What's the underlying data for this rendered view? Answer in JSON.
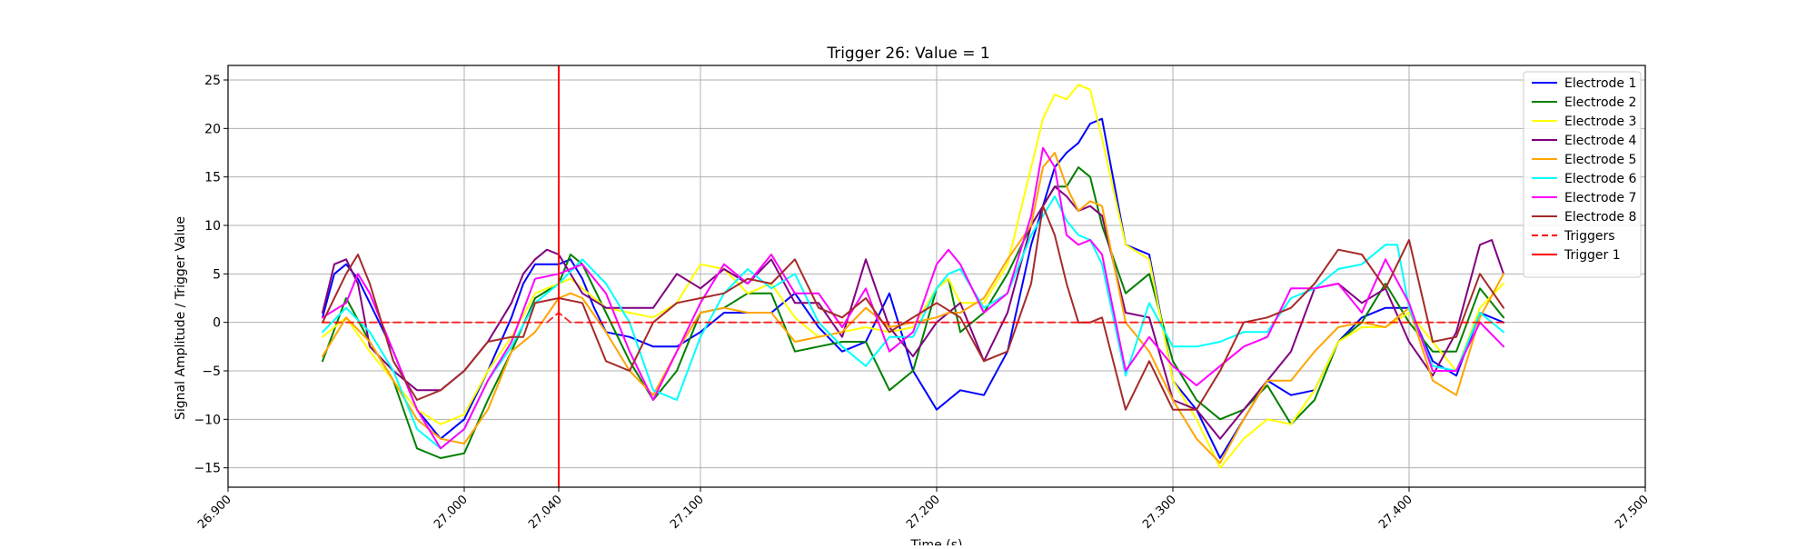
{
  "chart_data": {
    "type": "line",
    "title": "Trigger 26: Value = 1",
    "xlabel": "Time (s)",
    "ylabel": "Signal Amplitude / Trigger Value",
    "xlim": [
      26.9,
      27.5
    ],
    "ylim": [
      -17,
      26.5
    ],
    "x_ticks": [
      26.9,
      27.0,
      27.04,
      27.1,
      27.2,
      27.3,
      27.4,
      27.5
    ],
    "x_tick_labels": [
      "26.900",
      "27.000",
      "27.040",
      "27.100",
      "27.200",
      "27.300",
      "27.400",
      "27.500"
    ],
    "y_ticks": [
      -15,
      -10,
      -5,
      0,
      5,
      10,
      15,
      20,
      25
    ],
    "y_tick_labels": [
      "−15",
      "−10",
      "−5",
      "0",
      "5",
      "10",
      "15",
      "20",
      "25"
    ],
    "grid": true,
    "legend_position": "top-right",
    "trigger_time": 27.04,
    "series": [
      {
        "name": "Electrode 1",
        "color": "#0000ff",
        "x": [
          26.94,
          26.945,
          26.95,
          26.955,
          26.96,
          26.97,
          26.98,
          26.99,
          27.0,
          27.01,
          27.02,
          27.025,
          27.03,
          27.04,
          27.045,
          27.05,
          27.055,
          27.06,
          27.07,
          27.08,
          27.09,
          27.1,
          27.11,
          27.12,
          27.13,
          27.14,
          27.15,
          27.16,
          27.17,
          27.18,
          27.19,
          27.2,
          27.205,
          27.21,
          27.22,
          27.23,
          27.24,
          27.25,
          27.255,
          27.26,
          27.265,
          27.27,
          27.28,
          27.29,
          27.3,
          27.31,
          27.32,
          27.33,
          27.34,
          27.35,
          27.36,
          27.37,
          27.38,
          27.39,
          27.4,
          27.41,
          27.42,
          27.43,
          27.44
        ],
        "y": [
          0.5,
          5,
          6,
          4.5,
          2,
          -3,
          -9,
          -12,
          -10,
          -5,
          0.5,
          4,
          6,
          6,
          6.5,
          4.5,
          1.5,
          -1,
          -1.5,
          -2.5,
          -2.5,
          -1,
          1,
          1,
          1,
          3,
          -0.5,
          -3,
          -2,
          3,
          -5,
          -9,
          -8,
          -7,
          -7.5,
          -3,
          8,
          16,
          17.5,
          18.5,
          20.5,
          21,
          8,
          7,
          -6,
          -9,
          -14,
          -10,
          -6,
          -7.5,
          -7,
          -2,
          0.5,
          1.5,
          1.5,
          -4,
          -5.5,
          1,
          0
        ]
      },
      {
        "name": "Electrode 2",
        "color": "#008000",
        "x": [
          26.94,
          26.95,
          26.96,
          26.97,
          26.98,
          26.99,
          27.0,
          27.01,
          27.02,
          27.03,
          27.04,
          27.045,
          27.05,
          27.06,
          27.07,
          27.08,
          27.09,
          27.1,
          27.11,
          27.12,
          27.13,
          27.14,
          27.15,
          27.16,
          27.17,
          27.18,
          27.19,
          27.2,
          27.205,
          27.21,
          27.22,
          27.23,
          27.24,
          27.25,
          27.255,
          27.26,
          27.265,
          27.27,
          27.28,
          27.29,
          27.3,
          27.31,
          27.32,
          27.33,
          27.34,
          27.35,
          27.36,
          27.37,
          27.38,
          27.39,
          27.4,
          27.41,
          27.42,
          27.43,
          27.44
        ],
        "y": [
          -4,
          2.5,
          -2,
          -6,
          -13,
          -14,
          -13.5,
          -8,
          -3,
          2.5,
          4,
          7,
          6,
          1,
          -4,
          -8,
          -5,
          1,
          1.5,
          3,
          3,
          -3,
          -2.5,
          -2,
          -2,
          -7,
          -5,
          3.5,
          4.5,
          -1,
          1,
          5,
          10,
          14,
          14,
          16,
          15,
          10,
          3,
          5,
          -4,
          -8,
          -10,
          -9,
          -6.5,
          -10.5,
          -8,
          -2,
          0,
          4,
          0,
          -3,
          -3,
          3.5,
          0.5
        ]
      },
      {
        "name": "Electrode 3",
        "color": "#ffff00",
        "x": [
          26.94,
          26.95,
          26.96,
          26.97,
          26.98,
          26.99,
          27.0,
          27.01,
          27.02,
          27.03,
          27.04,
          27.045,
          27.05,
          27.06,
          27.07,
          27.08,
          27.09,
          27.1,
          27.11,
          27.12,
          27.13,
          27.14,
          27.15,
          27.16,
          27.17,
          27.18,
          27.19,
          27.2,
          27.205,
          27.21,
          27.22,
          27.23,
          27.24,
          27.245,
          27.25,
          27.255,
          27.26,
          27.265,
          27.27,
          27.28,
          27.29,
          27.3,
          27.31,
          27.32,
          27.33,
          27.34,
          27.35,
          27.36,
          27.37,
          27.38,
          27.39,
          27.4,
          27.41,
          27.42,
          27.43,
          27.44
        ],
        "y": [
          -1.5,
          0.5,
          -3,
          -6,
          -9,
          -10.5,
          -9.5,
          -5,
          -1.5,
          3,
          4,
          4.5,
          3.5,
          1.5,
          1,
          0.5,
          2,
          6,
          5.5,
          3,
          4,
          0.5,
          -1.5,
          -1,
          -0.5,
          -1,
          -0.5,
          3.5,
          4.5,
          2,
          2,
          6,
          16,
          21,
          23.5,
          23,
          24.5,
          24,
          19,
          8,
          6.5,
          -6,
          -10,
          -15,
          -12,
          -10,
          -10.5,
          -7,
          -2,
          -0.5,
          -0.5,
          1,
          -2,
          -5,
          1.5,
          4
        ]
      },
      {
        "name": "Electrode 4",
        "color": "#800080",
        "x": [
          26.94,
          26.945,
          26.95,
          26.955,
          26.96,
          26.97,
          26.98,
          26.99,
          27.0,
          27.01,
          27.02,
          27.025,
          27.03,
          27.035,
          27.04,
          27.05,
          27.06,
          27.07,
          27.08,
          27.09,
          27.1,
          27.11,
          27.12,
          27.13,
          27.14,
          27.15,
          27.16,
          27.17,
          27.18,
          27.19,
          27.2,
          27.205,
          27.21,
          27.22,
          27.23,
          27.24,
          27.25,
          27.255,
          27.26,
          27.265,
          27.27,
          27.28,
          27.29,
          27.3,
          27.31,
          27.32,
          27.33,
          27.34,
          27.35,
          27.36,
          27.37,
          27.38,
          27.39,
          27.4,
          27.41,
          27.42,
          27.43,
          27.435,
          27.44
        ],
        "y": [
          1,
          6,
          6.5,
          4,
          -2.5,
          -5,
          -7,
          -7,
          -5,
          -2,
          2,
          5,
          6.5,
          7.5,
          7,
          3,
          1.5,
          1.5,
          1.5,
          5,
          3.5,
          5.5,
          4,
          6.5,
          2,
          2,
          -1.5,
          6.5,
          -0.5,
          -3.5,
          0,
          1,
          2,
          -4,
          1,
          10,
          14,
          13,
          11.5,
          12,
          11,
          1,
          0.5,
          -8,
          -9,
          -12,
          -9,
          -6,
          -3,
          3.5,
          4,
          2,
          3.5,
          -2,
          -5.5,
          -1,
          8,
          8.5,
          5
        ]
      },
      {
        "name": "Electrode 5",
        "color": "#ffa500",
        "x": [
          26.94,
          26.95,
          26.96,
          26.97,
          26.98,
          26.99,
          27.0,
          27.01,
          27.02,
          27.03,
          27.04,
          27.045,
          27.05,
          27.06,
          27.07,
          27.08,
          27.09,
          27.1,
          27.11,
          27.12,
          27.13,
          27.14,
          27.15,
          27.16,
          27.17,
          27.18,
          27.19,
          27.2,
          27.205,
          27.21,
          27.22,
          27.23,
          27.24,
          27.245,
          27.25,
          27.255,
          27.26,
          27.265,
          27.27,
          27.28,
          27.29,
          27.3,
          27.31,
          27.32,
          27.33,
          27.34,
          27.35,
          27.36,
          27.37,
          27.38,
          27.39,
          27.4,
          27.41,
          27.42,
          27.43,
          27.44
        ],
        "y": [
          -3.5,
          0.5,
          -2,
          -6,
          -10,
          -12,
          -12.5,
          -9,
          -3,
          -1,
          2.5,
          3,
          2.5,
          -1,
          -5,
          -7.5,
          -3,
          1,
          1.5,
          1,
          1,
          -2,
          -1.5,
          -1,
          1.5,
          -0.5,
          0,
          0.5,
          1,
          1,
          2.5,
          6.5,
          10,
          16,
          17.5,
          14,
          11.5,
          12.5,
          12,
          0,
          -3,
          -8,
          -12,
          -14.5,
          -10,
          -6,
          -6,
          -3,
          -0.5,
          0,
          -0.5,
          1.5,
          -6,
          -7.5,
          0.5,
          5
        ]
      },
      {
        "name": "Electrode 6",
        "color": "#00ffff",
        "x": [
          26.94,
          26.95,
          26.96,
          26.97,
          26.98,
          26.99,
          27.0,
          27.01,
          27.02,
          27.03,
          27.04,
          27.05,
          27.06,
          27.07,
          27.08,
          27.09,
          27.1,
          27.11,
          27.12,
          27.13,
          27.14,
          27.15,
          27.16,
          27.17,
          27.18,
          27.19,
          27.2,
          27.205,
          27.21,
          27.22,
          27.23,
          27.24,
          27.25,
          27.255,
          27.26,
          27.265,
          27.27,
          27.28,
          27.29,
          27.3,
          27.31,
          27.32,
          27.33,
          27.34,
          27.35,
          27.36,
          27.37,
          27.38,
          27.39,
          27.395,
          27.4,
          27.41,
          27.42,
          27.43,
          27.44
        ],
        "y": [
          -1,
          1.5,
          -1,
          -5,
          -11,
          -13,
          -11,
          -6,
          -2.5,
          2,
          4,
          6.5,
          4,
          0,
          -7,
          -8,
          -1.5,
          3,
          5.5,
          3.5,
          5,
          0,
          -2.5,
          -4.5,
          -1.5,
          -1.5,
          3.5,
          5,
          5.5,
          1.5,
          3,
          9,
          13,
          10.5,
          9,
          8.5,
          6,
          -5.5,
          2,
          -2.5,
          -2.5,
          -2,
          -1,
          -1,
          2.5,
          3.5,
          5.5,
          6,
          8,
          8,
          1.5,
          -4.5,
          -5,
          1,
          -1
        ]
      },
      {
        "name": "Electrode 7",
        "color": "#ff00ff",
        "x": [
          26.94,
          26.95,
          26.955,
          26.96,
          26.97,
          26.98,
          26.99,
          27.0,
          27.01,
          27.02,
          27.03,
          27.04,
          27.05,
          27.06,
          27.07,
          27.08,
          27.09,
          27.1,
          27.11,
          27.12,
          27.13,
          27.14,
          27.15,
          27.16,
          27.17,
          27.18,
          27.19,
          27.2,
          27.205,
          27.21,
          27.22,
          27.23,
          27.24,
          27.245,
          27.25,
          27.255,
          27.26,
          27.265,
          27.27,
          27.28,
          27.29,
          27.3,
          27.31,
          27.32,
          27.33,
          27.34,
          27.35,
          27.36,
          27.37,
          27.38,
          27.39,
          27.4,
          27.41,
          27.42,
          27.43,
          27.44
        ],
        "y": [
          0.5,
          2,
          5,
          3,
          -3,
          -9,
          -13,
          -11,
          -6,
          -2,
          4.5,
          5,
          6,
          3,
          -3,
          -8,
          -3,
          2,
          6,
          4,
          7,
          3,
          3,
          -0.5,
          3.5,
          -3,
          -1,
          6,
          7.5,
          6,
          1,
          3,
          11,
          18,
          16,
          9,
          8,
          8.5,
          7,
          -5,
          -1.5,
          -4.5,
          -6.5,
          -4.5,
          -2.5,
          -1.5,
          3.5,
          3.5,
          4,
          1,
          6.5,
          2,
          -5,
          -5,
          0,
          -2.5
        ]
      },
      {
        "name": "Electrode 8",
        "color": "#a52a2a",
        "x": [
          26.94,
          26.95,
          26.955,
          26.96,
          26.97,
          26.98,
          26.99,
          27.0,
          27.01,
          27.02,
          27.025,
          27.03,
          27.04,
          27.05,
          27.06,
          27.07,
          27.08,
          27.09,
          27.1,
          27.11,
          27.12,
          27.13,
          27.14,
          27.15,
          27.16,
          27.17,
          27.18,
          27.19,
          27.2,
          27.21,
          27.22,
          27.23,
          27.24,
          27.245,
          27.25,
          27.255,
          27.26,
          27.265,
          27.27,
          27.28,
          27.29,
          27.3,
          27.31,
          27.32,
          27.33,
          27.34,
          27.35,
          27.36,
          27.37,
          27.38,
          27.39,
          27.4,
          27.41,
          27.42,
          27.43,
          27.44
        ],
        "y": [
          0,
          5,
          7,
          4,
          -4,
          -8,
          -7,
          -5,
          -2,
          -1.5,
          -1.5,
          2,
          2.5,
          2,
          -4,
          -5,
          0,
          2,
          2.5,
          3,
          4.5,
          4,
          6.5,
          1.5,
          0.5,
          2.5,
          -1,
          0.5,
          2,
          0.5,
          -4,
          -3,
          4,
          12,
          9,
          4,
          0,
          0,
          0.5,
          -9,
          -4,
          -9,
          -9,
          -5,
          0,
          0.5,
          1.5,
          4,
          7.5,
          7,
          3.5,
          8.5,
          -2,
          -1.5,
          5,
          1.5
        ]
      },
      {
        "name": "Triggers",
        "color": "#ff0000",
        "dashed": true,
        "x": [
          26.94,
          27.035,
          27.04,
          27.045,
          27.44
        ],
        "y": [
          0,
          0,
          1,
          0,
          0
        ]
      }
    ],
    "legend_entries": [
      {
        "label": "Electrode 1",
        "color": "#0000ff",
        "style": "solid"
      },
      {
        "label": "Electrode 2",
        "color": "#008000",
        "style": "solid"
      },
      {
        "label": "Electrode 3",
        "color": "#ffff00",
        "style": "solid"
      },
      {
        "label": "Electrode 4",
        "color": "#800080",
        "style": "solid"
      },
      {
        "label": "Electrode 5",
        "color": "#ffa500",
        "style": "solid"
      },
      {
        "label": "Electrode 6",
        "color": "#00ffff",
        "style": "solid"
      },
      {
        "label": "Electrode 7",
        "color": "#ff00ff",
        "style": "solid"
      },
      {
        "label": "Electrode 8",
        "color": "#a52a2a",
        "style": "solid"
      },
      {
        "label": "Triggers",
        "color": "#ff0000",
        "style": "dashed"
      },
      {
        "label": "Trigger 1",
        "color": "#ff0000",
        "style": "solid"
      }
    ]
  }
}
